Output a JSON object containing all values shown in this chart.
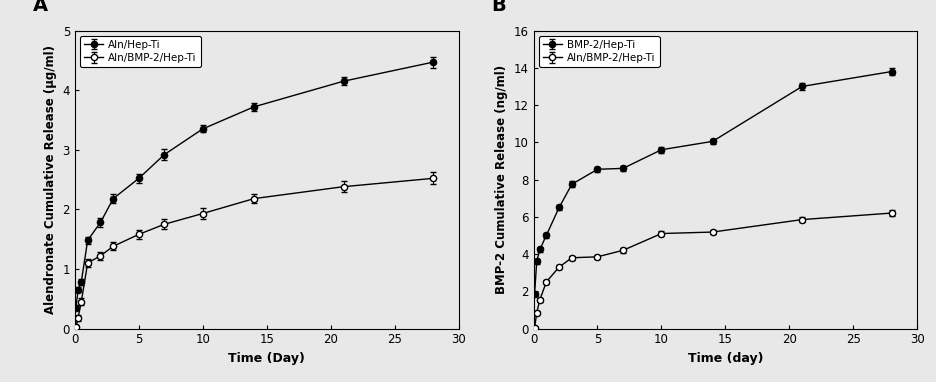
{
  "panel_A": {
    "title": "A",
    "xlabel": "Time (Day)",
    "ylabel": "Alendronate Cumulative Release (μg/ml)",
    "xlim": [
      0,
      30
    ],
    "ylim": [
      0,
      5
    ],
    "yticks": [
      0,
      1,
      2,
      3,
      4,
      5
    ],
    "xticks": [
      0,
      5,
      10,
      15,
      20,
      25,
      30
    ],
    "series1": {
      "label": "Aln/Hep-Ti",
      "x": [
        0.083,
        0.25,
        0.5,
        1,
        2,
        3,
        5,
        7,
        10,
        14,
        21,
        28
      ],
      "y": [
        0.35,
        0.65,
        0.78,
        1.48,
        1.78,
        2.18,
        2.52,
        2.92,
        3.35,
        3.72,
        4.15,
        4.47
      ],
      "yerr": [
        0.04,
        0.04,
        0.05,
        0.06,
        0.07,
        0.07,
        0.07,
        0.09,
        0.06,
        0.07,
        0.07,
        0.09
      ]
    },
    "series2": {
      "label": "Aln/BMP-2/Hep-Ti",
      "x": [
        0.083,
        0.25,
        0.5,
        1,
        2,
        3,
        5,
        7,
        10,
        14,
        21,
        28
      ],
      "y": [
        0.02,
        0.18,
        0.45,
        1.1,
        1.22,
        1.38,
        1.58,
        1.75,
        1.93,
        2.18,
        2.38,
        2.52
      ],
      "yerr": [
        0.04,
        0.05,
        0.06,
        0.07,
        0.07,
        0.07,
        0.08,
        0.08,
        0.09,
        0.08,
        0.09,
        0.1
      ]
    }
  },
  "panel_B": {
    "title": "B",
    "xlabel": "Time (day)",
    "ylabel": "BMP-2 Cumulative Release (ng/ml)",
    "xlim": [
      0,
      30
    ],
    "ylim": [
      0,
      16
    ],
    "yticks": [
      0,
      2,
      4,
      6,
      8,
      10,
      12,
      14,
      16
    ],
    "xticks": [
      0,
      5,
      10,
      15,
      20,
      25,
      30
    ],
    "series1": {
      "label": "BMP-2/Hep-Ti",
      "x": [
        0.083,
        0.25,
        0.5,
        1,
        2,
        3,
        5,
        7,
        10,
        14,
        21,
        28
      ],
      "y": [
        1.85,
        3.6,
        4.25,
        5.0,
        6.5,
        7.75,
        8.55,
        8.6,
        9.6,
        10.05,
        13.0,
        13.8
      ],
      "yerr": [
        0.1,
        0.15,
        0.15,
        0.12,
        0.15,
        0.15,
        0.15,
        0.15,
        0.15,
        0.15,
        0.18,
        0.2
      ]
    },
    "series2": {
      "label": "Aln/BMP-2/Hep-Ti",
      "x": [
        0.083,
        0.25,
        0.5,
        1,
        2,
        3,
        5,
        7,
        10,
        14,
        21,
        28
      ],
      "y": [
        0.02,
        0.85,
        1.55,
        2.5,
        3.3,
        3.8,
        3.85,
        4.2,
        5.1,
        5.18,
        5.85,
        6.2
      ],
      "yerr": [
        0.04,
        0.08,
        0.1,
        0.12,
        0.12,
        0.12,
        0.12,
        0.12,
        0.13,
        0.13,
        0.15,
        0.15
      ]
    }
  },
  "fig_width": 9.36,
  "fig_height": 3.82,
  "dpi": 100,
  "bg_color": "#e8e8e8"
}
